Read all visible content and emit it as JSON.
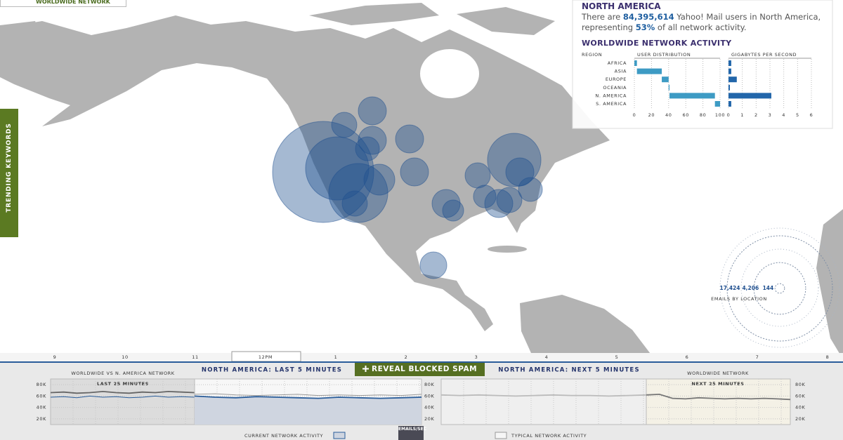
{
  "header": {
    "network_button": "WORLDWIDE NETWORK",
    "side_tab": "TRENDING KEYWORDS"
  },
  "info_panel": {
    "region": "NORTH AMERICA",
    "sentence": [
      "There are ",
      "84,395,614",
      " Yahoo! Mail users in North America, representing ",
      "53%",
      " of all network activity."
    ]
  },
  "timeline": {
    "hours": [
      "9",
      "10",
      "11",
      "12PM",
      "1",
      "2",
      "3",
      "4",
      "5",
      "6",
      "7",
      "8"
    ]
  },
  "controls": {
    "reveal_button": "REVEAL BLOCKED SPAM",
    "emails_sec": "EMAILS/SEC"
  },
  "chart_data": [
    {
      "type": "range-bar",
      "title": "WORLDWIDE NETWORK ACTIVITY",
      "category_label": "REGION",
      "categories": [
        "AFRICA",
        "ASIA",
        "EUROPE",
        "OCEANIA",
        "N. AMERICA",
        "S. AMERICA"
      ],
      "series": [
        {
          "name": "USER DISTRIBUTION",
          "color": "#3d9bc4",
          "stacked": true,
          "values": [
            3,
            29,
            8,
            1,
            53,
            6
          ],
          "xlim": [
            0,
            100
          ],
          "xticks": [
            0,
            20,
            40,
            60,
            80,
            100
          ]
        },
        {
          "name": "GIGABYTES PER SECOND",
          "color": "#2266aa",
          "values": [
            0.2,
            0.2,
            0.6,
            0.1,
            3.1,
            0.2
          ],
          "xlim": [
            0,
            6
          ],
          "xticks": [
            0,
            1,
            2,
            3,
            4,
            5,
            6
          ]
        }
      ]
    },
    {
      "type": "bubble-map",
      "title": "EMAILS BY LOCATION",
      "color": "#1f4f8f",
      "sizes": [
        16060,
        6280,
        5470,
        1240,
        1000,
        900,
        1500,
        1240,
        1240,
        1240,
        1000,
        1240,
        700,
        1120,
        4480,
        1240,
        1000,
        800,
        1240,
        1000,
        900
      ],
      "legend": [
        {
          "value": 17424,
          "label": "17,424"
        },
        {
          "value": 4206,
          "label": "4,206"
        },
        144
      ]
    },
    {
      "type": "line",
      "title": "WORLDWIDE VS N. AMERICA NETWORK",
      "subtitle": "LAST 25 MINUTES",
      "ylim": [
        10000,
        90000
      ],
      "yticks": [
        {
          "value": 80000,
          "label": "80K"
        },
        {
          "value": 60000,
          "label": "60K"
        },
        {
          "value": 40000,
          "label": "40K"
        },
        {
          "value": 20000,
          "label": "20K"
        }
      ],
      "series": [
        {
          "color": "#666666",
          "values": [
            66000,
            67000,
            65000,
            66000,
            68000,
            66000,
            65000,
            67000,
            66000,
            68000,
            67000,
            66000
          ]
        },
        {
          "color": "#2a5d9a",
          "values": [
            58000,
            59000,
            57000,
            60000,
            58000,
            59000,
            57000,
            58000,
            60000,
            58000,
            59000,
            58000
          ]
        }
      ]
    },
    {
      "type": "area",
      "title": "NORTH AMERICA: LAST 5 MINUTES",
      "ylim": [
        10000,
        90000
      ],
      "yticks": [
        {
          "value": 80000,
          "label": "80K"
        },
        {
          "value": 60000,
          "label": "60K"
        },
        {
          "value": 40000,
          "label": "40K"
        },
        {
          "value": 20000,
          "label": "20K"
        }
      ],
      "series": [
        {
          "name": "CURRENT NETWORK ACTIVITY",
          "color": "#2a5d9a",
          "values": [
            60000,
            58000,
            57000,
            59000,
            58000,
            57000,
            56000,
            58000,
            57000,
            56000,
            57000,
            58000
          ]
        },
        {
          "name": "TYPICAL NETWORK ACTIVITY",
          "color": "#999999",
          "values": [
            63000,
            64000,
            62000,
            61000,
            62000,
            63000,
            61000,
            62000,
            61000,
            62000,
            61000,
            63000
          ]
        }
      ]
    },
    {
      "type": "line",
      "title": "NORTH AMERICA: NEXT 5 MINUTES",
      "ylim": [
        10000,
        90000
      ],
      "series": [
        {
          "color": "#bbbbbb",
          "values": [
            62000,
            61000,
            62000,
            61000,
            60000,
            61000,
            62000,
            61000,
            61000,
            60000,
            61000,
            62000
          ]
        }
      ]
    },
    {
      "type": "line",
      "title": "WORLDWIDE NETWORK",
      "subtitle": "NEXT 25 MINUTES",
      "ylim": [
        10000,
        90000
      ],
      "yticks": [
        {
          "value": 80000,
          "label": "80K"
        },
        {
          "value": 60000,
          "label": "60K"
        },
        {
          "value": 40000,
          "label": "40K"
        },
        {
          "value": 20000,
          "label": "20K"
        }
      ],
      "series": [
        {
          "color": "#777777",
          "values": [
            62000,
            63000,
            56000,
            55000,
            57000,
            56000,
            55000,
            56000,
            55000,
            56000,
            55000,
            54000
          ]
        }
      ]
    }
  ]
}
